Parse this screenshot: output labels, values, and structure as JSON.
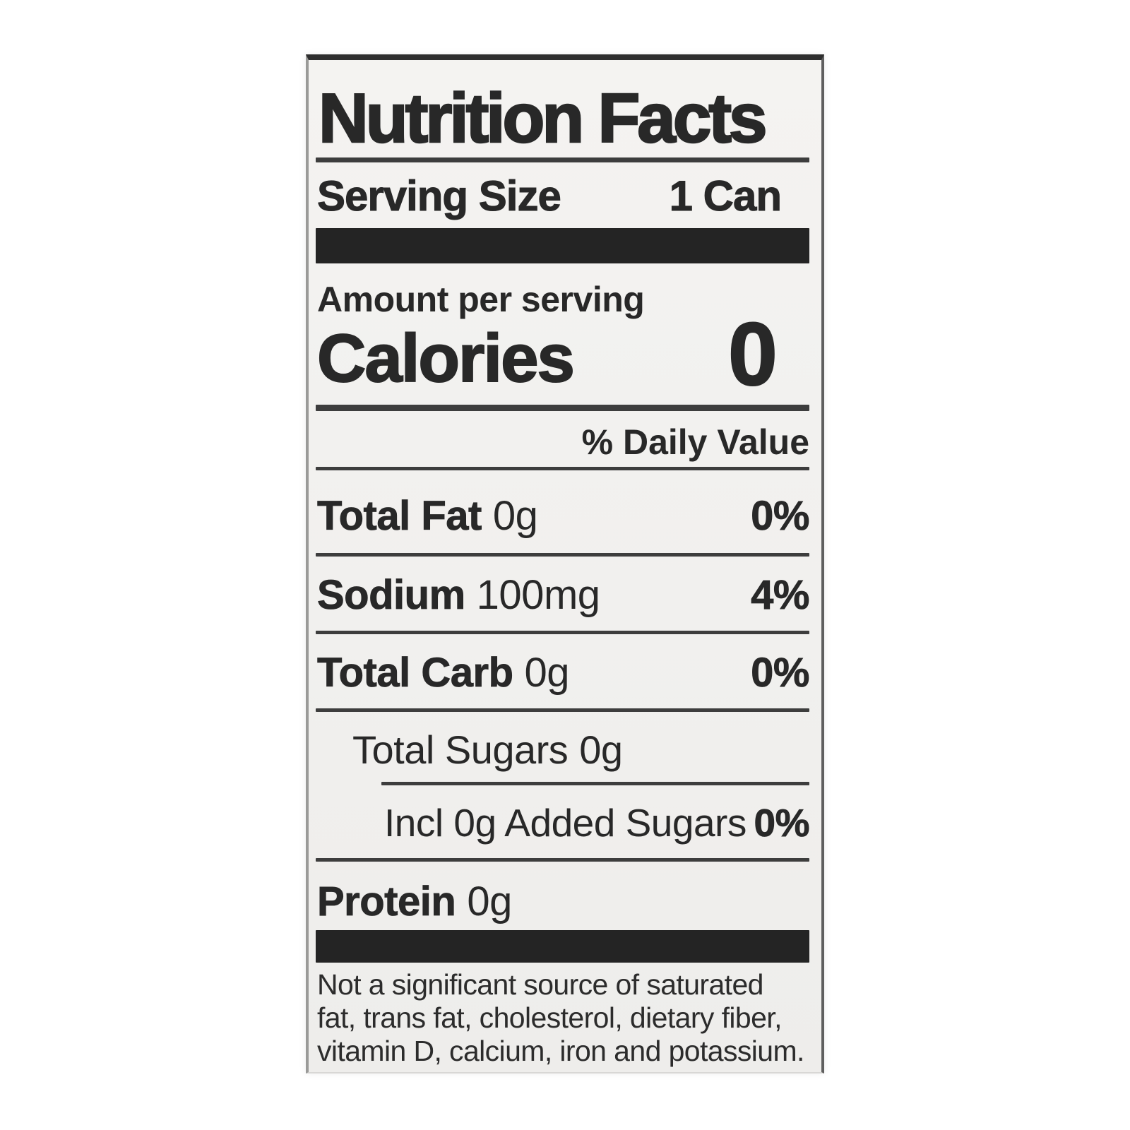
{
  "page_background": "#ffffff",
  "label": {
    "colors": {
      "background": "#f1f0ee",
      "text": "#282828",
      "bar": "#242424",
      "rule": "#3d3d3d",
      "border_top": "#2e2e2e"
    },
    "title": "Nutrition Facts",
    "serving": {
      "label": "Serving Size",
      "value": "1 Can"
    },
    "amount_per_serving": "Amount per serving",
    "calories": {
      "label": "Calories",
      "value": "0"
    },
    "daily_value_header": "% Daily Value",
    "rows": {
      "fat": {
        "name": "Total Fat",
        "amount": "0g",
        "dv": "0%"
      },
      "sodium": {
        "name": "Sodium",
        "amount": "100mg",
        "dv": "4%"
      },
      "carb": {
        "name": "Total Carb",
        "amount": "0g",
        "dv": "0%"
      },
      "total_sugars": {
        "name": "Total Sugars",
        "amount": "0g"
      },
      "added_sugars": {
        "name": "Incl 0g Added Sugars",
        "dv": "0%"
      },
      "protein": {
        "name": "Protein",
        "amount": "0g"
      }
    },
    "footnote_lines": [
      "Not a significant source of saturated",
      "fat, trans fat, cholesterol, dietary fiber,",
      "vitamin D, calcium, iron and potassium."
    ]
  }
}
